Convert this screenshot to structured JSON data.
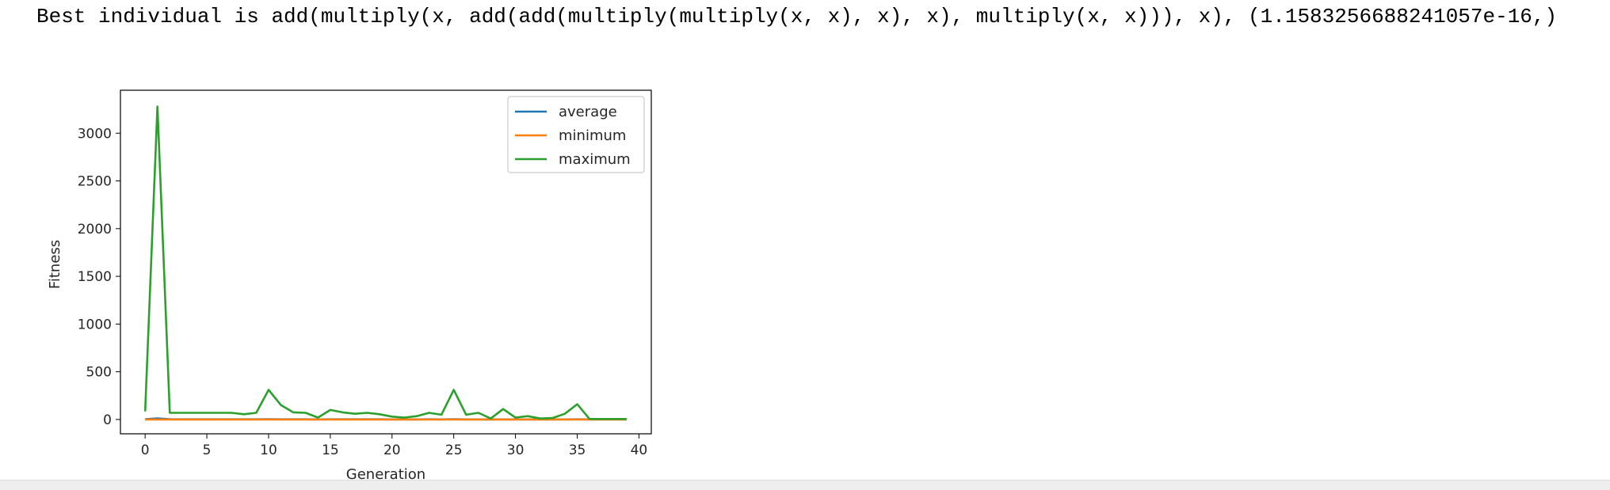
{
  "output": {
    "text": "Best individual is add(multiply(x, add(add(multiply(multiply(x, x), x), x), multiply(x, x))), x), (1.1583256688241057e-16,)"
  },
  "chart_data": {
    "type": "line",
    "title": "",
    "xlabel": "Generation",
    "ylabel": "Fitness",
    "xlim": [
      -2,
      41
    ],
    "ylim": [
      -150,
      3450
    ],
    "xticks": [
      0,
      5,
      10,
      15,
      20,
      25,
      30,
      35,
      40
    ],
    "yticks": [
      0,
      500,
      1000,
      1500,
      2000,
      2500,
      3000
    ],
    "grid": false,
    "legend_position": "top-right",
    "x": [
      0,
      1,
      2,
      3,
      4,
      5,
      6,
      7,
      8,
      9,
      10,
      11,
      12,
      13,
      14,
      15,
      16,
      17,
      18,
      19,
      20,
      21,
      22,
      23,
      24,
      25,
      26,
      27,
      28,
      29,
      30,
      31,
      32,
      33,
      34,
      35,
      36,
      37,
      38,
      39
    ],
    "series": [
      {
        "name": "average",
        "color": "#1f77b4",
        "values": [
          3,
          12,
          3,
          2,
          2,
          2,
          2,
          2,
          2,
          2,
          3,
          2,
          2,
          2,
          1,
          2,
          2,
          2,
          2,
          2,
          1,
          1,
          1,
          2,
          1,
          3,
          1,
          1,
          1,
          1,
          1,
          1,
          1,
          1,
          1,
          2,
          1,
          1,
          1,
          1
        ]
      },
      {
        "name": "minimum",
        "color": "#ff7f0e",
        "values": [
          0,
          0,
          0,
          0,
          0,
          0,
          0,
          0,
          0,
          0,
          0,
          0,
          0,
          0,
          0,
          0,
          0,
          0,
          0,
          0,
          0,
          0,
          0,
          0,
          0,
          0,
          0,
          0,
          0,
          0,
          0,
          0,
          0,
          0,
          0,
          0,
          0,
          0,
          0,
          0
        ]
      },
      {
        "name": "maximum",
        "color": "#2ca02c",
        "values": [
          85,
          3280,
          70,
          70,
          70,
          70,
          70,
          70,
          55,
          70,
          310,
          150,
          75,
          70,
          20,
          100,
          75,
          60,
          70,
          55,
          30,
          20,
          35,
          70,
          50,
          310,
          50,
          70,
          10,
          110,
          20,
          35,
          10,
          15,
          60,
          160,
          5,
          5,
          5,
          5
        ]
      }
    ]
  }
}
